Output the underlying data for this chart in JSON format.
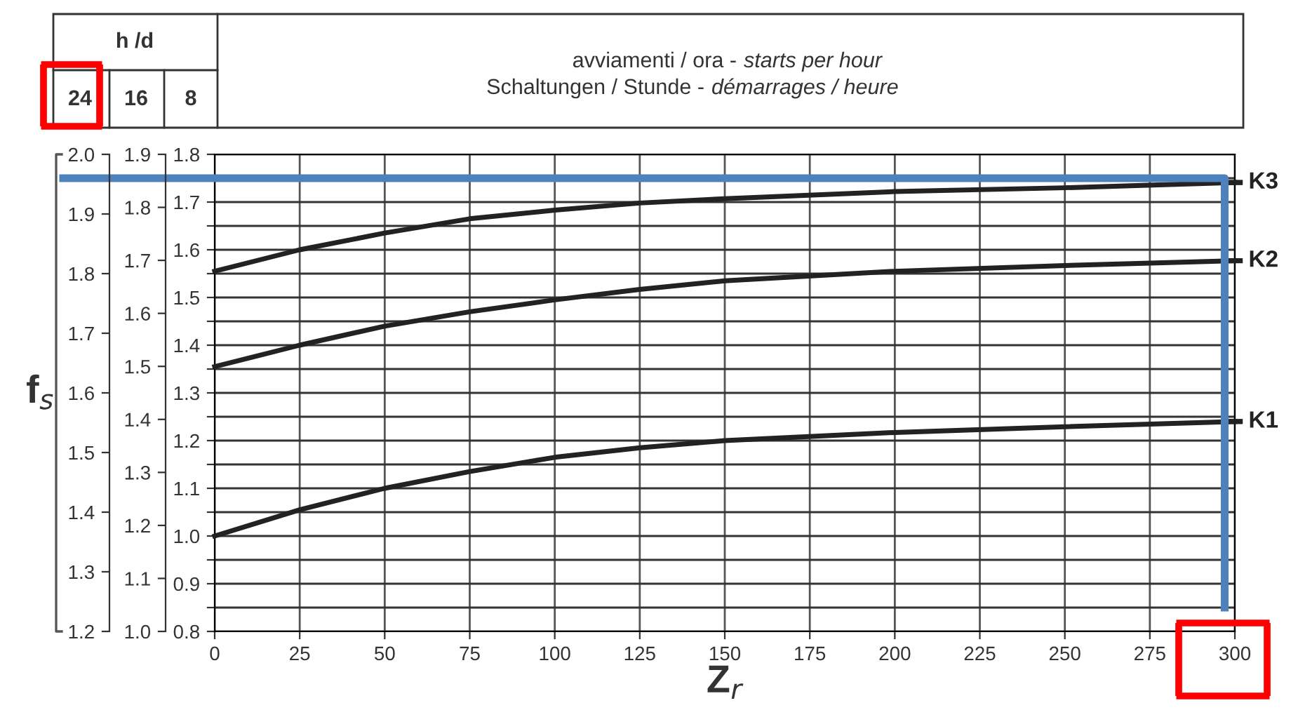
{
  "chart_data": {
    "type": "line",
    "xlabel": "Z$_{r}$",
    "y3label": "f$_{s}$",
    "annotations": [
      "h /d",
      "24",
      "16",
      "8",
      "avviamenti / ora -",
      "starts per hour",
      "Schaltungen / Stunde -",
      "démarrages / heure"
    ],
    "x": [
      0,
      25,
      50,
      75,
      100,
      125,
      150,
      200,
      250,
      300
    ],
    "series": [
      {
        "name": "K1",
        "color": "#222222",
        "values": [
          1.0,
          1.055,
          1.1,
          1.135,
          1.165,
          1.185,
          1.2,
          1.217,
          1.229,
          1.24
        ]
      },
      {
        "name": "K2",
        "color": "#222222",
        "values": [
          1.355,
          1.4,
          1.44,
          1.47,
          1.495,
          1.517,
          1.535,
          1.555,
          1.567,
          1.577
        ]
      },
      {
        "name": "K3",
        "color": "#222222",
        "values": [
          1.555,
          1.6,
          1.635,
          1.665,
          1.683,
          1.698,
          1.707,
          1.722,
          1.73,
          1.741
        ]
      },
      {
        "color": "#4f81bd",
        "x": [
          297,
          297
        ],
        "values": [
          1.75,
          0.85
        ]
      }
    ],
    "xlim": [
      0,
      300
    ],
    "xticks": [
      0,
      25,
      50,
      75,
      100,
      125,
      150,
      175,
      200,
      225,
      250,
      275,
      300
    ],
    "ylim": [
      0.8,
      1.8
    ],
    "yticks": [
      0.8,
      {
        "value": 0.85,
        "label": null
      },
      0.9,
      {
        "value": 0.95,
        "label": null
      },
      {
        "value": 1.0,
        "label": "1.0"
      },
      {
        "value": 1.05,
        "label": null
      },
      1.1,
      {
        "value": 1.15,
        "label": null
      },
      1.2,
      {
        "value": 1.25,
        "label": null
      },
      1.3,
      {
        "value": 1.35,
        "label": null
      },
      1.4,
      {
        "value": 1.45,
        "label": null
      },
      1.5,
      {
        "value": 1.55,
        "label": null
      },
      1.6,
      {
        "value": 1.65,
        "label": null
      },
      1.7,
      {
        "value": 1.75,
        "label": null
      },
      1.8
    ],
    "y2lim": [
      1.0,
      1.9
    ],
    "y2ticks": [
      {
        "value": 1.0,
        "label": "1.0"
      },
      1.1,
      1.2,
      1.3,
      1.4,
      1.5,
      1.6,
      1.7,
      1.8,
      1.9
    ],
    "y3lim": [
      1.2,
      2.0
    ],
    "y3ticks": [
      1.2,
      1.3,
      1.4,
      1.5,
      1.6,
      1.7,
      1.8,
      1.9,
      {
        "value": 2.0,
        "label": "2.0"
      }
    ],
    "grid": true,
    "legend": "right"
  }
}
